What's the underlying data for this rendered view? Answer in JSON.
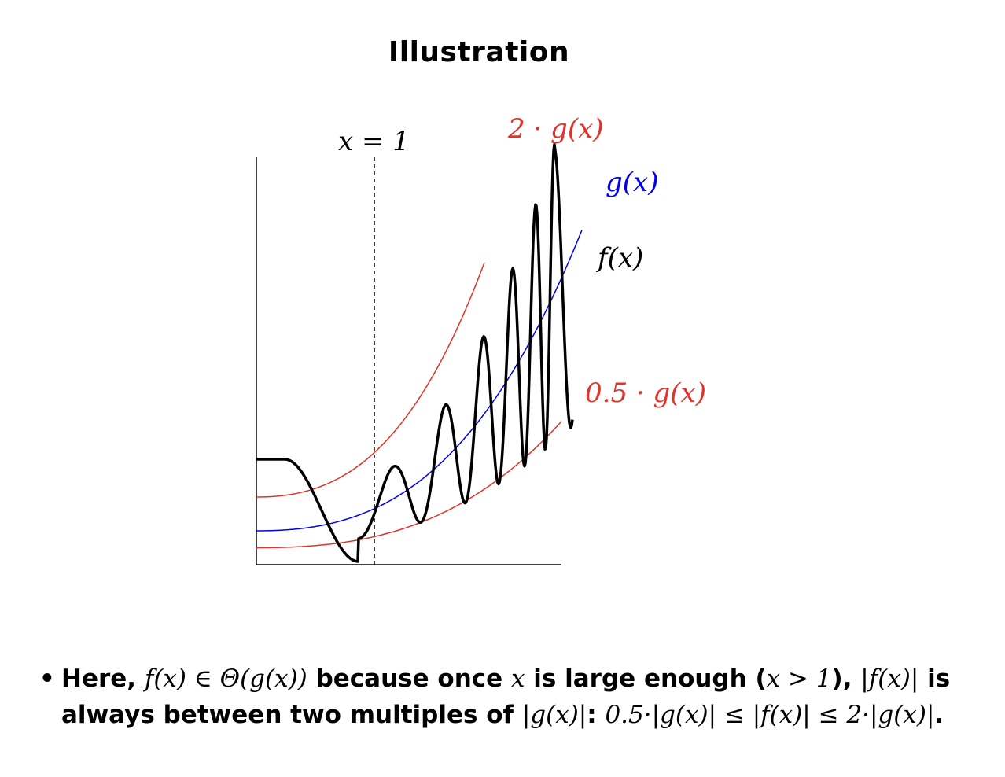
{
  "slide": {
    "title": "Illustration"
  },
  "figure": {
    "labels": {
      "threshold": "x = 1",
      "upper_bound": "2 · g(x)",
      "g": "g(x)",
      "f": "f(x)",
      "lower_bound": "0.5 · g(x)"
    },
    "colors": {
      "f": "#000000",
      "g": "#0000ee",
      "bounds": "#e0332a",
      "threshold": "#000000"
    }
  },
  "bullet": {
    "marker": "•",
    "t1": "Here, ",
    "m1": "f(x) ∈ Θ(g(x))",
    "t2": " because once ",
    "m2": "x",
    "t3": " is large enough (",
    "m3": "x > 1",
    "t4": "), ",
    "m4": "|f(x)|",
    "t5": " is",
    "t6": "always between two multiples of ",
    "m5": "|g(x)|",
    "t7": ": ",
    "m6": "0.5·|g(x)| ≤ |f(x)| ≤ 2·|g(x)|",
    "t8": "."
  }
}
